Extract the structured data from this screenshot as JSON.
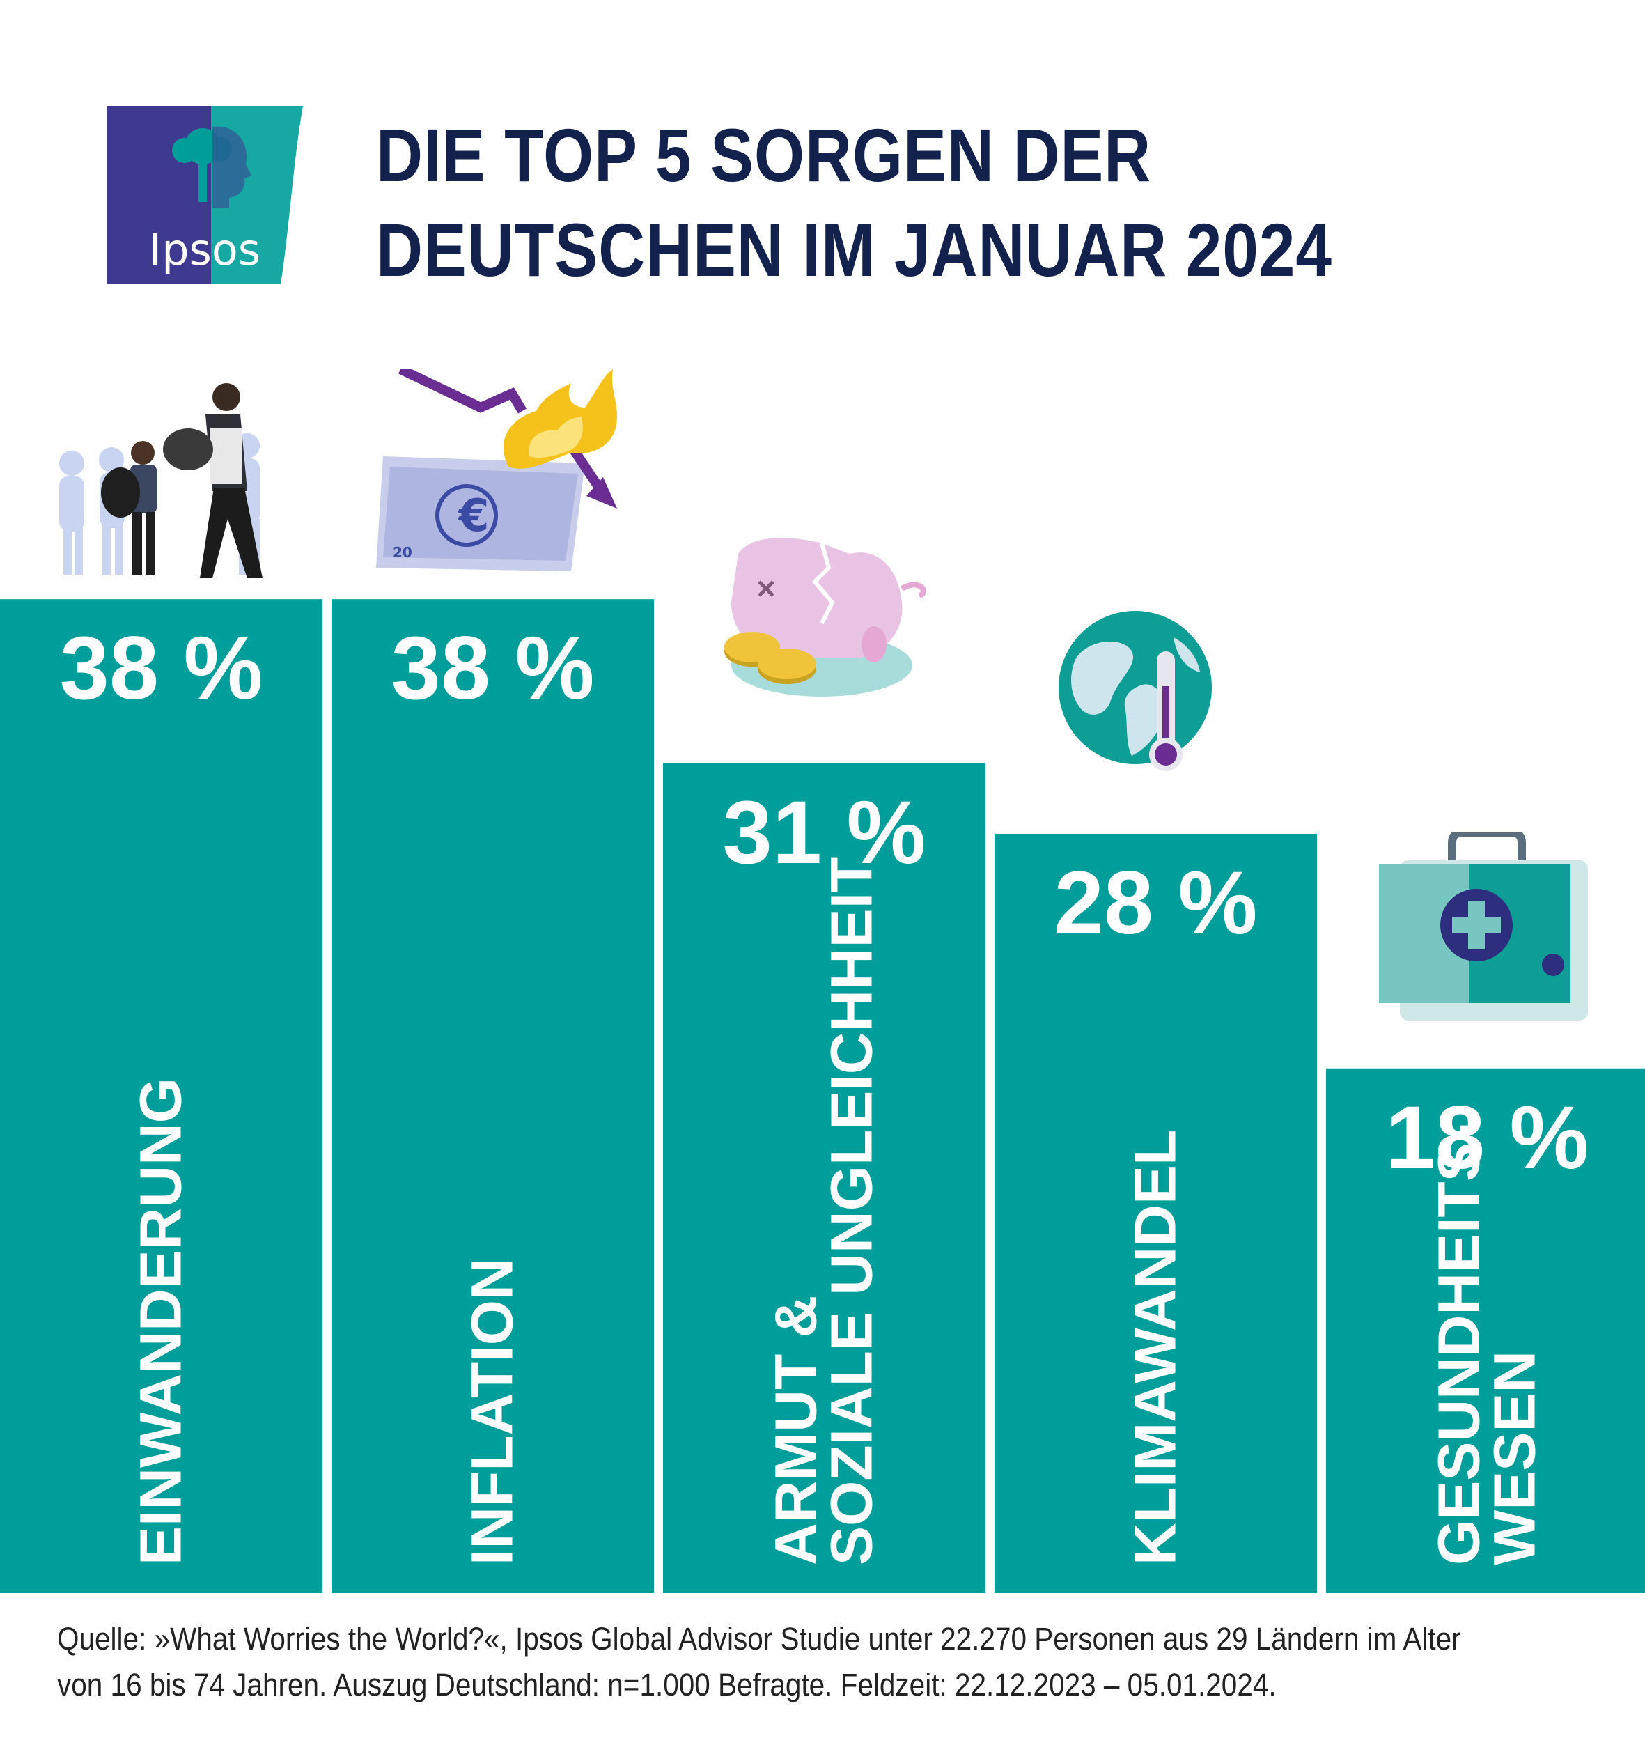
{
  "brand": {
    "logo_text": "Ipsos",
    "colors": {
      "purple": "#3d3a8f",
      "teal": "#17a8a3"
    }
  },
  "title": {
    "line1": "DIE TOP 5 SORGEN DER",
    "line2": "DEUTSCHEN IM JANUAR 2024",
    "color": "#13224d"
  },
  "chart_data": {
    "type": "bar",
    "categories": [
      "EINWANDERUNG",
      "INFLATION",
      "ARMUT & SOZIALE UNGLEICHHEIT",
      "KLIMAWANDEL",
      "GESUNDHEITS-WESEN"
    ],
    "category_lines": [
      [
        "EINWANDERUNG"
      ],
      [
        "INFLATION"
      ],
      [
        "ARMUT &",
        "SOZIALE UNGLEICHHEIT"
      ],
      [
        "KLIMAWANDEL"
      ],
      [
        "GESUNDHEITS-",
        "WESEN"
      ]
    ],
    "values": [
      38,
      38,
      31,
      28,
      18
    ],
    "value_labels": [
      "38 %",
      "38 %",
      "31 %",
      "28 %",
      "18 %"
    ],
    "unit": "%",
    "bar_color": "#009e9a",
    "icons": [
      "migrants-icon",
      "euro-inflation-icon",
      "broken-piggy-bank-icon",
      "globe-thermometer-icon",
      "first-aid-kit-icon"
    ]
  },
  "source": {
    "line1": "Quelle: »What Worries the World?«, Ipsos Global Advisor Studie unter 22.270 Personen aus 29 Ländern im Alter",
    "line2": "von 16 bis 74 Jahren. Auszug Deutschland: n=1.000 Befragte. Feldzeit: 22.12.2023 – 05.01.2024."
  }
}
